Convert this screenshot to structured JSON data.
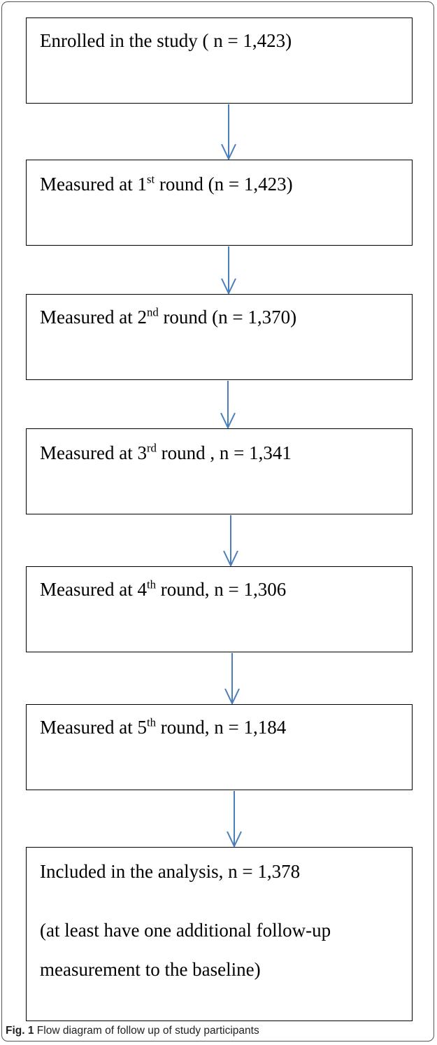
{
  "boxes": [
    {
      "pre": "Enrolled in the study ( n = 1,423)",
      "sup": "",
      "post": ""
    },
    {
      "pre": "Measured at 1",
      "sup": "st",
      "post": " round  (n = 1,423)"
    },
    {
      "pre": "Measured at 2",
      "sup": "nd",
      "post": " round  (n = 1,370)"
    },
    {
      "pre": "Measured at 3",
      "sup": "rd",
      "post": " round ,  n = 1,341"
    },
    {
      "pre": "Measured at 4",
      "sup": "th",
      "post": " round,  n = 1,306"
    },
    {
      "pre": "Measured at 5",
      "sup": "th",
      "post": " round,  n = 1,184"
    },
    {
      "pre": "Included in the analysis,  n = 1,378",
      "sup": "",
      "post": "",
      "note_line1": "(at least have one additional follow-up",
      "note_line2": "measurement to the baseline)"
    }
  ],
  "arrow_color": "#4a7ebb",
  "caption": {
    "label": "Fig. 1",
    "text": " Flow diagram of follow up of study participants"
  }
}
